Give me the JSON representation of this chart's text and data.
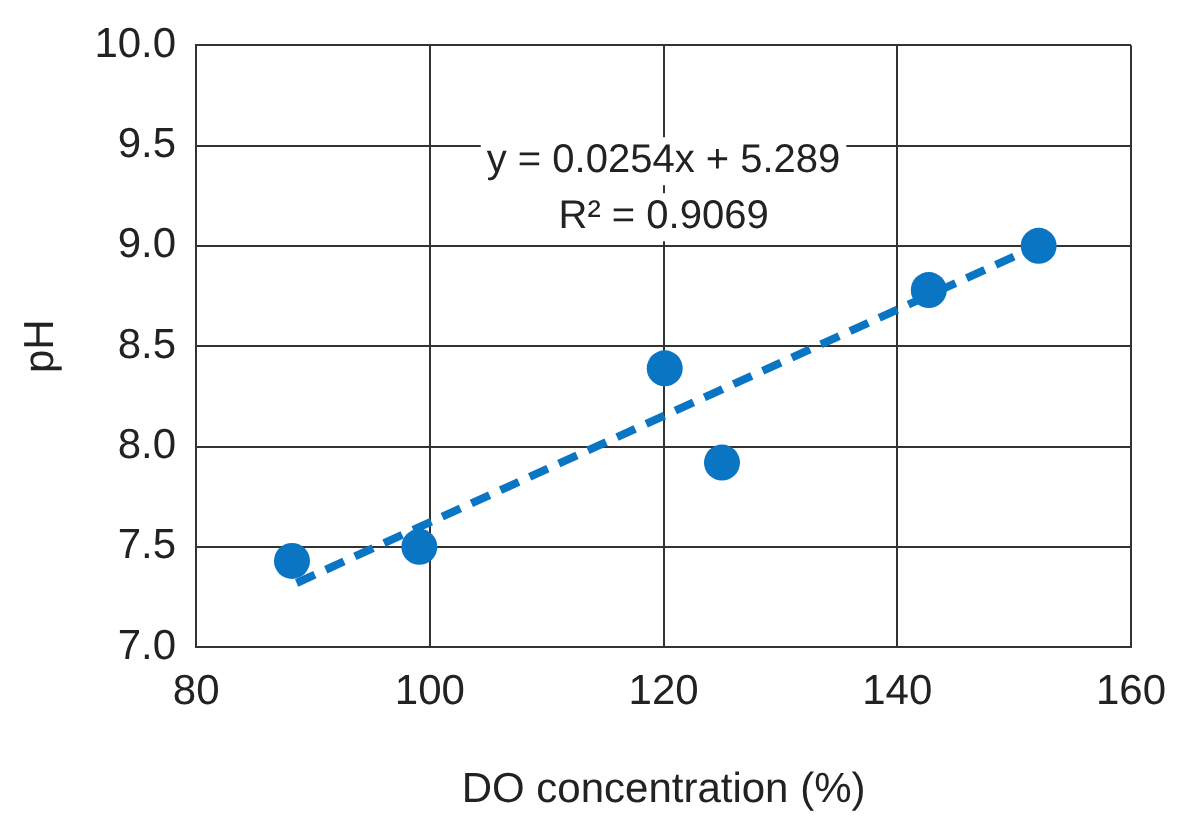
{
  "chart_data": {
    "type": "scatter",
    "xlabel": "DO concentration (%)",
    "ylabel": "pH",
    "series": [
      {
        "color": "#0a75c2",
        "x": [
          88.2,
          99.1,
          120.1,
          125.0,
          142.7,
          152.1
        ],
        "values": [
          7.43,
          7.5,
          8.39,
          7.92,
          8.78,
          9.0
        ],
        "marker": "circle"
      },
      {
        "type": "line",
        "color": "#0a75c2",
        "x": [
          88.6,
          150.5
        ],
        "values": [
          7.32,
          8.96
        ],
        "line_style": "dashed",
        "marker": "none"
      }
    ],
    "annotations": [
      "y = 0.0254x + 5.289",
      "R² = 0.9069"
    ],
    "xlim": [
      80,
      160
    ],
    "xticks": [
      80,
      100,
      120,
      140,
      160
    ],
    "ylim": [
      7.0,
      10.0
    ],
    "yticks": [
      {
        "value": 7,
        "label": "7.0"
      },
      {
        "value": 7.5,
        "label": "7.5"
      },
      {
        "value": 8,
        "label": "8.0"
      },
      {
        "value": 8.5,
        "label": "8.5"
      },
      {
        "value": 9,
        "label": "9.0"
      },
      {
        "value": 9.5,
        "label": "9.5"
      },
      {
        "value": 10,
        "label": "10.0"
      }
    ],
    "grid": true,
    "legend": false
  }
}
